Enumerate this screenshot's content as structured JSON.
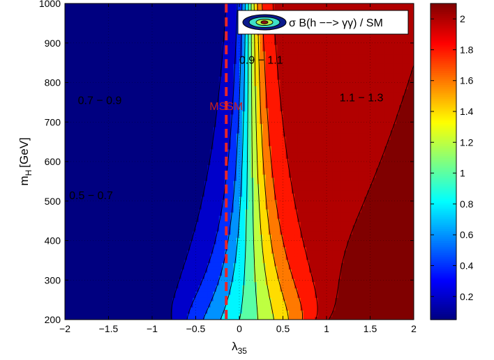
{
  "chart_data": [
    {
      "type": "contour",
      "xlabel": "λ",
      "xlabel_sub": "35",
      "ylabel": "m",
      "ylabel_sub": "H",
      "ylabel_unit": "[GeV]",
      "xlim": [
        -2,
        2
      ],
      "ylim": [
        200,
        1000
      ],
      "xticks": [
        "−2",
        "−1.5",
        "−1",
        "−0.5",
        "0",
        "0.5",
        "1",
        "1.5",
        "2"
      ],
      "xtick_values": [
        -2,
        -1.5,
        -1,
        -0.5,
        0,
        0.5,
        1,
        1.5,
        2
      ],
      "yticks": [
        "200",
        "300",
        "400",
        "500",
        "600",
        "700",
        "800",
        "900",
        "1000"
      ],
      "ytick_values": [
        200,
        300,
        400,
        500,
        600,
        700,
        800,
        900,
        1000
      ],
      "grid": true,
      "legend": "σ B(h −−> γγ) / SM",
      "legend_position": "top-right",
      "levels": [
        0.1,
        0.3,
        0.5,
        0.7,
        0.9,
        1.1,
        1.3,
        1.5,
        1.7,
        1.9,
        2.1
      ],
      "region_labels": [
        {
          "text": "0.7 − 0.9",
          "x": -1.6,
          "y": 745
        },
        {
          "text": "0.5 − 0.7",
          "x": -1.7,
          "y": 505
        },
        {
          "text": "0.9 − 1.1",
          "x": 0.25,
          "y": 848
        },
        {
          "text": "1.1 − 1.3",
          "x": 1.4,
          "y": 752
        }
      ],
      "reference_line": {
        "label": "MSSM",
        "x": -0.15,
        "color": "#e8252a"
      }
    },
    {
      "type": "colorbar",
      "range": [
        0.05,
        2.1
      ],
      "ticks": [
        "0.2",
        "0.4",
        "0.6",
        "0.8",
        "1",
        "1.2",
        "1.4",
        "1.6",
        "1.8",
        "2"
      ],
      "tick_values": [
        0.2,
        0.4,
        0.6,
        0.8,
        1.0,
        1.2,
        1.4,
        1.6,
        1.8,
        2.0
      ],
      "colormap": "jet"
    }
  ]
}
